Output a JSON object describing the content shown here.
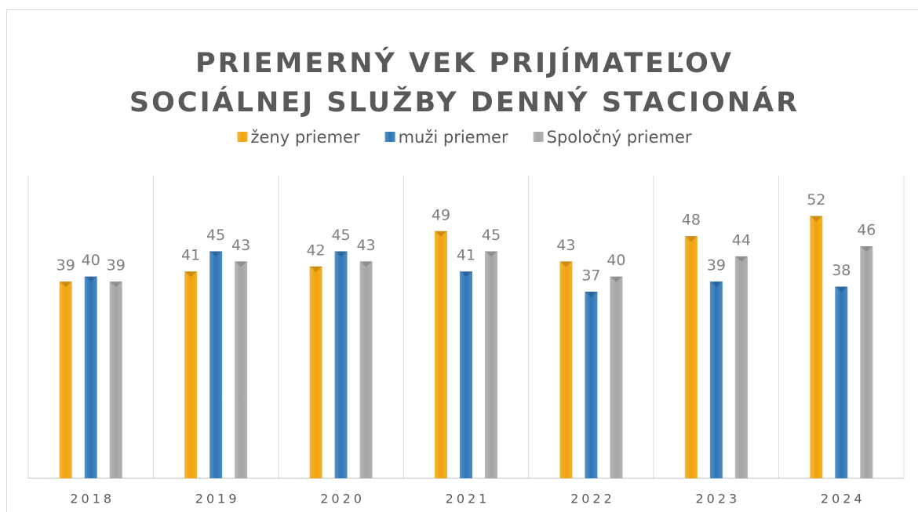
{
  "chart_data": {
    "type": "bar",
    "title": [
      "PRIEMERNÝ VEK PRIJÍMATEĽOV",
      "SOCIÁLNEJ SLUŽBY  DENNÝ STACIONÁR"
    ],
    "categories": [
      "2018",
      "2019",
      "2020",
      "2021",
      "2022",
      "2023",
      "2024"
    ],
    "series": [
      {
        "name": "ženy priemer",
        "color": "#f0a30a",
        "values": [
          39,
          41,
          42,
          49,
          43,
          48,
          52
        ]
      },
      {
        "name": "muži priemer",
        "color": "#2e75b6",
        "values": [
          40,
          45,
          45,
          41,
          37,
          39,
          38
        ]
      },
      {
        "name": "Spoločný priemer",
        "color": "#a5a5a5",
        "values": [
          39,
          43,
          43,
          45,
          40,
          44,
          46
        ]
      }
    ],
    "ylim": [
      0,
      60
    ],
    "legend": "top"
  }
}
